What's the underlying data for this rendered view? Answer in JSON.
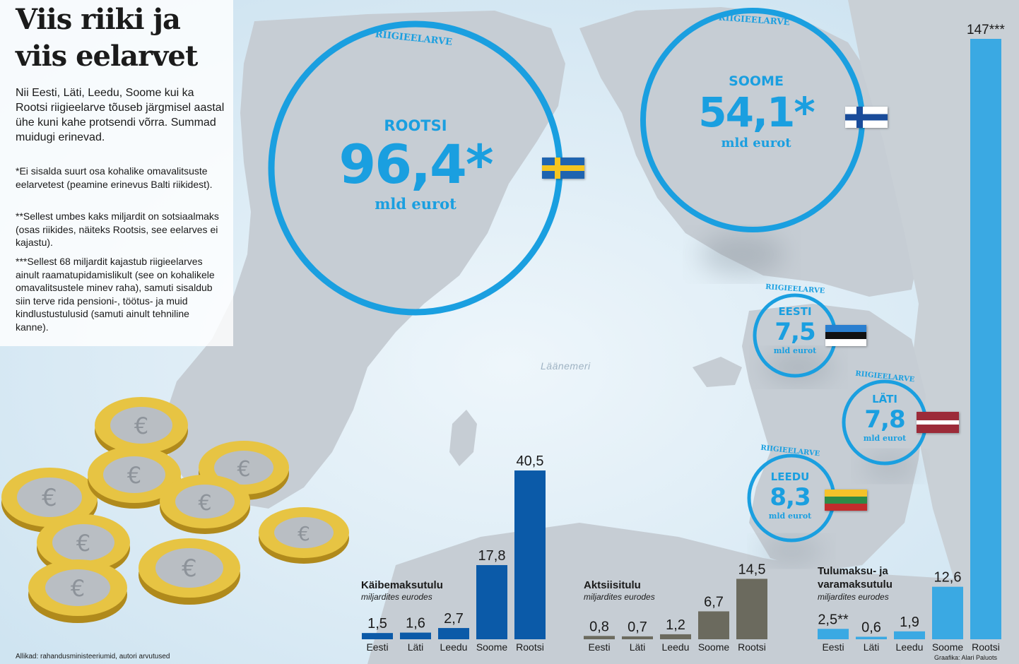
{
  "header": {
    "title_line1": "Viis riiki ja",
    "title_line2": "viis eelarvet",
    "intro": "Nii Eesti, Läti, Leedu, Soome kui ka Rootsi riigieelarve tõuseb järgmisel aastal ühe kuni kahe protsendi võrra. Summad muidugi erinevad.",
    "note1": "*Ei sisalda suurt osa kohalike omavalitsuste eelarvetest (peamine erinevus Balti riikidest).",
    "note2": "**Sellest umbes kaks miljardit on sotsiaalmaks (osas riikides, näiteks Rootsis, see eelarves ei kajastu).",
    "note3": "***Sellest 68 miljardit kajastub riigieelarves ainult raamatupidamislikult (see on kohalikele omavalitsustele minev raha), samuti sisaldub siin terve rida pensioni-, töötus- ja muid kindlustustulusid (samuti ainult tehniline kanne)."
  },
  "map": {
    "sea_label": "Läänemeri",
    "colors": {
      "sea": "#d9ebf5",
      "land": "#c5ccd3",
      "accent": "#1a9fe0"
    }
  },
  "budgets": {
    "arc_label": "RIIGIEELARVE",
    "unit": "mld eurot",
    "items": [
      {
        "country": "ROOTSI",
        "value": "96,4*",
        "flag": "sweden-flag"
      },
      {
        "country": "SOOME",
        "value": "54,1*",
        "flag": "finland-flag"
      },
      {
        "country": "EESTI",
        "value": "7,5",
        "flag": "estonia-flag"
      },
      {
        "country": "LÄTI",
        "value": "7,8",
        "flag": "latvia-flag"
      },
      {
        "country": "LEEDU",
        "value": "8,3",
        "flag": "lithuania-flag"
      }
    ]
  },
  "chart_data": [
    {
      "type": "bar",
      "title": "Käibemaksutulu",
      "subtitle": "miljardites eurodes",
      "categories": [
        "Eesti",
        "Läti",
        "Leedu",
        "Soome",
        "Rootsi"
      ],
      "values": [
        1.5,
        1.6,
        2.7,
        17.8,
        40.5
      ],
      "value_labels": [
        "1,5",
        "1,6",
        "2,7",
        "17,8",
        "40,5"
      ],
      "color": "#0b5aa8"
    },
    {
      "type": "bar",
      "title": "Aktsiisitulu",
      "subtitle": "miljardites eurodes",
      "categories": [
        "Eesti",
        "Läti",
        "Leedu",
        "Soome",
        "Rootsi"
      ],
      "values": [
        0.8,
        0.7,
        1.2,
        6.7,
        14.5
      ],
      "value_labels": [
        "0,8",
        "0,7",
        "1,2",
        "6,7",
        "14,5"
      ],
      "color": "#6b6a5e"
    },
    {
      "type": "bar",
      "title": "Tulumaksu- ja varamaksutulu",
      "subtitle": "miljardites eurodes",
      "categories": [
        "Eesti",
        "Läti",
        "Leedu",
        "Soome",
        "Rootsi"
      ],
      "values": [
        2.5,
        0.6,
        1.9,
        12.6,
        147
      ],
      "value_labels": [
        "2,5**",
        "0,6",
        "1,9",
        "12,6",
        "147***"
      ],
      "color": "#3aa9e3"
    }
  ],
  "footer": {
    "source": "Allikad: rahandusministeeriumid, autori arvutused",
    "credit": "Graafika: Alari Paluots"
  }
}
